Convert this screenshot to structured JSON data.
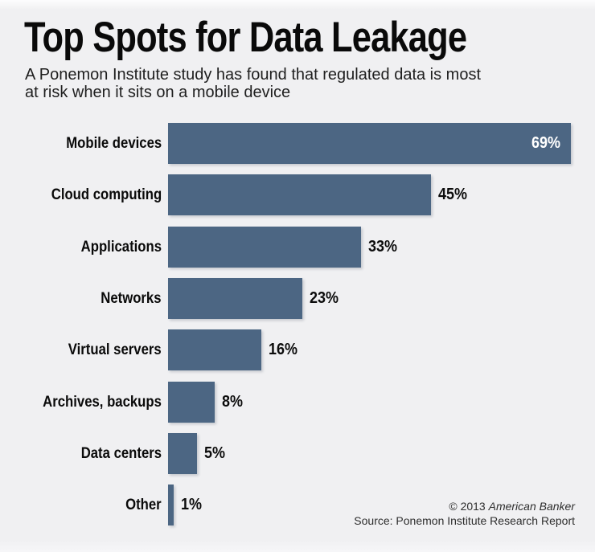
{
  "page": {
    "background_color": "#f0f0f2"
  },
  "header": {
    "title": "Top Spots for Data Leakage",
    "subtitle_lines": [
      "A Ponemon Institute study has found that regulated data is most",
      "at risk when it sits on a mobile device"
    ]
  },
  "chart_data": {
    "type": "bar",
    "orientation": "horizontal",
    "title": "Top Spots for Data Leakage",
    "xlabel": "",
    "ylabel": "",
    "xlim": [
      0,
      73
    ],
    "grid": false,
    "legend": false,
    "categories": [
      "Mobile devices",
      "Cloud computing",
      "Applications",
      "Networks",
      "Virtual servers",
      "Archives, backups",
      "Data centers",
      "Other"
    ],
    "values": [
      69,
      45,
      33,
      23,
      16,
      8,
      5,
      1
    ],
    "value_labels": [
      "69%",
      "45%",
      "33%",
      "23%",
      "16%",
      "8%",
      "5%",
      "1%"
    ],
    "bar_color": "#4c6683",
    "value_label_inside_first": true,
    "value_label_color_inside": "#ffffff",
    "value_label_color_outside": "#0c0c0c"
  },
  "footer": {
    "copyright_prefix": "© 2013 ",
    "copyright_brand": "American Banker",
    "source_line": "Source: Ponemon Institute Research Report"
  }
}
